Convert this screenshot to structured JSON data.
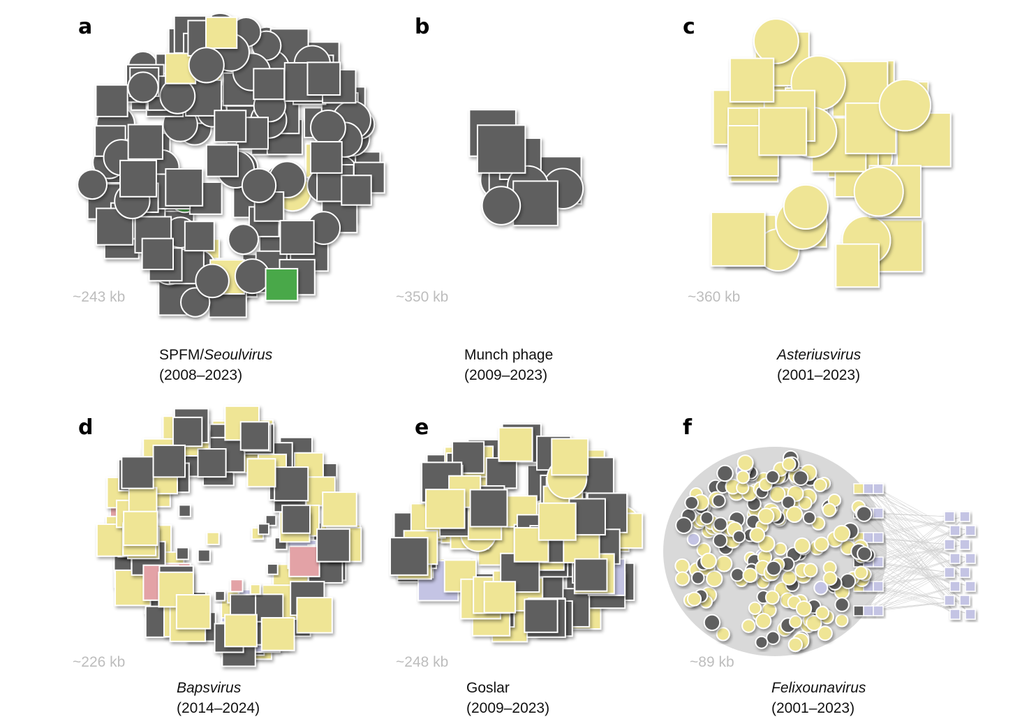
{
  "panels": [
    {
      "letter": "a",
      "size": "~243 kb",
      "name": [
        {
          "text": "SPFM/",
          "italic": false
        },
        {
          "text": "Seoulvirus",
          "italic": true
        }
      ],
      "years": "(2008–2023)"
    },
    {
      "letter": "b",
      "size": "~350 kb",
      "name": [
        {
          "text": "Munch phage",
          "italic": false
        }
      ],
      "years": "(2009–2023)"
    },
    {
      "letter": "c",
      "size": "~360 kb",
      "name": [
        {
          "text": "Asteriusvirus",
          "italic": true
        }
      ],
      "years": "(2001–2023)"
    },
    {
      "letter": "d",
      "size": "~226 kb",
      "name": [
        {
          "text": "Bapsvirus",
          "italic": true
        }
      ],
      "years": "(2014–2024)"
    },
    {
      "letter": "e",
      "size": "~248 kb",
      "name": [
        {
          "text": "Goslar",
          "italic": false
        }
      ],
      "years": "(2009–2023)"
    },
    {
      "letter": "f",
      "size": "~89 kb",
      "name": [
        {
          "text": "Felixounavirus",
          "italic": true
        }
      ],
      "years": "(2001–2023)"
    }
  ]
}
